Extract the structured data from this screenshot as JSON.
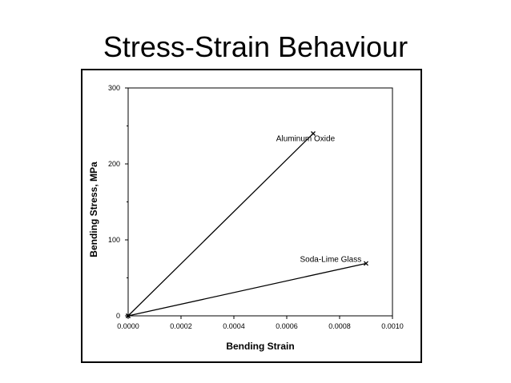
{
  "slide": {
    "title": "Stress-Strain Behaviour"
  },
  "chart_data": {
    "type": "line",
    "title": "",
    "xlabel": "Bending Strain",
    "ylabel": "Bending Stress, MPa",
    "xlim": [
      0,
      0.001
    ],
    "ylim": [
      0,
      300
    ],
    "x_ticks": [
      "0.0000",
      "0.0002",
      "0.0004",
      "0.0006",
      "0.0008",
      "0.0010"
    ],
    "y_ticks": [
      "0",
      "100",
      "200",
      "300"
    ],
    "grid": false,
    "legend": "none",
    "series": [
      {
        "name": "Aluminum Oxide",
        "points": [
          [
            0,
            0
          ],
          [
            0.0007,
            240
          ]
        ],
        "marker": "x",
        "color": "#000000"
      },
      {
        "name": "Soda-Lime Glass",
        "points": [
          [
            0,
            0
          ],
          [
            0.0009,
            69
          ]
        ],
        "marker": "x",
        "color": "#000000"
      }
    ],
    "annotations": [
      {
        "text": "Aluminum Oxide",
        "x": 0.00056,
        "y": 230
      },
      {
        "text": "Soda-Lime Glass",
        "x": 0.00065,
        "y": 71
      }
    ]
  }
}
